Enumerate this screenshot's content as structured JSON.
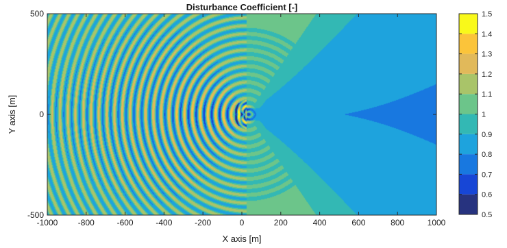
{
  "chart_data": {
    "type": "heatmap",
    "title": "Disturbance Coefficient [-]",
    "xlabel": "X axis [m]",
    "ylabel": "Y axis [m]",
    "xlim": [
      -1000,
      1000
    ],
    "ylim": [
      -500,
      500
    ],
    "xticks": [
      -1000,
      -800,
      -600,
      -400,
      -200,
      0,
      200,
      400,
      600,
      800,
      1000
    ],
    "yticks": [
      500,
      0,
      -500
    ],
    "colorbar": {
      "limits": [
        0.5,
        1.5
      ],
      "ticks": [
        1.5,
        1.4,
        1.3,
        1.2,
        1.1,
        1,
        0.9,
        0.8,
        0.7,
        0.6,
        0.5
      ],
      "levels": [
        {
          "from": 0.5,
          "to": 0.6,
          "color": "#27337f"
        },
        {
          "from": 0.6,
          "to": 0.7,
          "color": "#1746d6"
        },
        {
          "from": 0.7,
          "to": 0.8,
          "color": "#1878e0"
        },
        {
          "from": 0.8,
          "to": 0.9,
          "color": "#1ea3dd"
        },
        {
          "from": 0.9,
          "to": 1.0,
          "color": "#33b8b4"
        },
        {
          "from": 1.0,
          "to": 1.1,
          "color": "#6cc58a"
        },
        {
          "from": 1.1,
          "to": 1.2,
          "color": "#a9c469"
        },
        {
          "from": 1.2,
          "to": 1.3,
          "color": "#e1b95a"
        },
        {
          "from": 1.3,
          "to": 1.4,
          "color": "#fbc43a"
        },
        {
          "from": 1.4,
          "to": 1.5,
          "color": "#f9f91a"
        }
      ]
    },
    "features": {
      "structure_center": [
        25,
        0
      ],
      "ripple_wavelength_m": 40,
      "shadow_cone_value": 0.9,
      "reflection_peak_value": 1.35,
      "far_field_value": 1.0
    }
  }
}
